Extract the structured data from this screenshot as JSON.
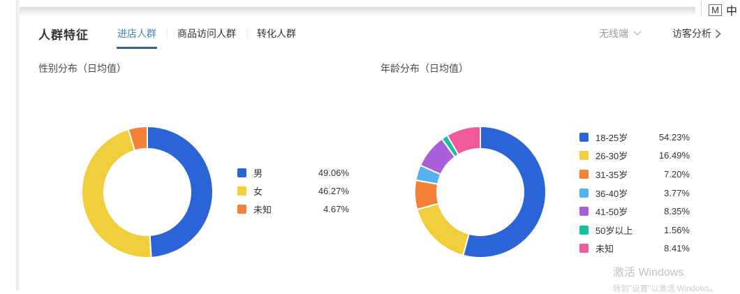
{
  "system": {
    "ime_letter": "M",
    "ime_lang": "中"
  },
  "panel": {
    "title": "人群特征",
    "tabs": [
      {
        "label": "进店人群",
        "active": true
      },
      {
        "label": "商品访问人群",
        "active": false
      },
      {
        "label": "转化人群",
        "active": false
      }
    ],
    "device_filter": {
      "label": "无线端"
    },
    "visitor_link": {
      "label": "访客分析"
    }
  },
  "chart_data": [
    {
      "type": "pie",
      "donut": true,
      "title": "性别分布（日均值）",
      "legend_position": "right",
      "series": [
        {
          "label": "男",
          "value": 49.06,
          "display": "49.06%",
          "color": "#2A64D6"
        },
        {
          "label": "女",
          "value": 46.27,
          "display": "46.27%",
          "color": "#F0CE3C"
        },
        {
          "label": "未知",
          "value": 4.67,
          "display": "4.67%",
          "color": "#F58139"
        }
      ]
    },
    {
      "type": "pie",
      "donut": true,
      "title": "年龄分布（日均值）",
      "legend_position": "right",
      "series": [
        {
          "label": "18-25岁",
          "value": 54.23,
          "display": "54.23%",
          "color": "#2A64D6"
        },
        {
          "label": "26-30岁",
          "value": 16.49,
          "display": "16.49%",
          "color": "#F0CE3C"
        },
        {
          "label": "31-35岁",
          "value": 7.2,
          "display": "7.20%",
          "color": "#F58139"
        },
        {
          "label": "36-40岁",
          "value": 3.77,
          "display": "3.77%",
          "color": "#54B2EE"
        },
        {
          "label": "41-50岁",
          "value": 8.35,
          "display": "8.35%",
          "color": "#A95FD9"
        },
        {
          "label": "50岁以上",
          "value": 1.56,
          "display": "1.56%",
          "color": "#17BFA0"
        },
        {
          "label": "未知",
          "value": 8.41,
          "display": "8.41%",
          "color": "#EF5A9B"
        }
      ]
    }
  ],
  "watermark": {
    "line1": "激活 Windows",
    "line2": "转到\"设置\"以激活 Windows。"
  },
  "colors": {
    "active_tab_text": "#4b83bd",
    "active_tab_underline": "#3a5e87",
    "muted_text": "#9b9b9b"
  }
}
